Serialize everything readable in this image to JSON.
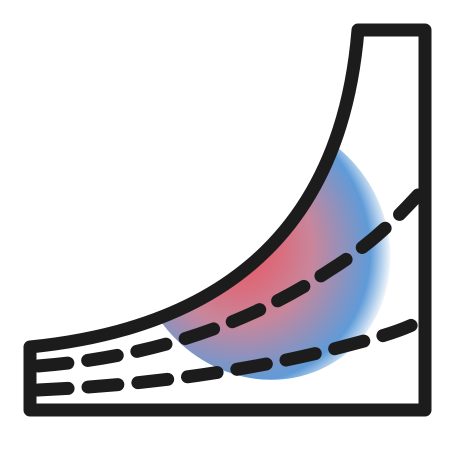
{
  "icon": {
    "name": "curved-ramp-with-gradient-icon",
    "stroke_color": "#1c1c1c",
    "fill_color": "#ffffff",
    "gradient": {
      "center_color": "#f04b55",
      "mid_color": "#c9869b",
      "edge_color": "#5f9bd8"
    }
  }
}
